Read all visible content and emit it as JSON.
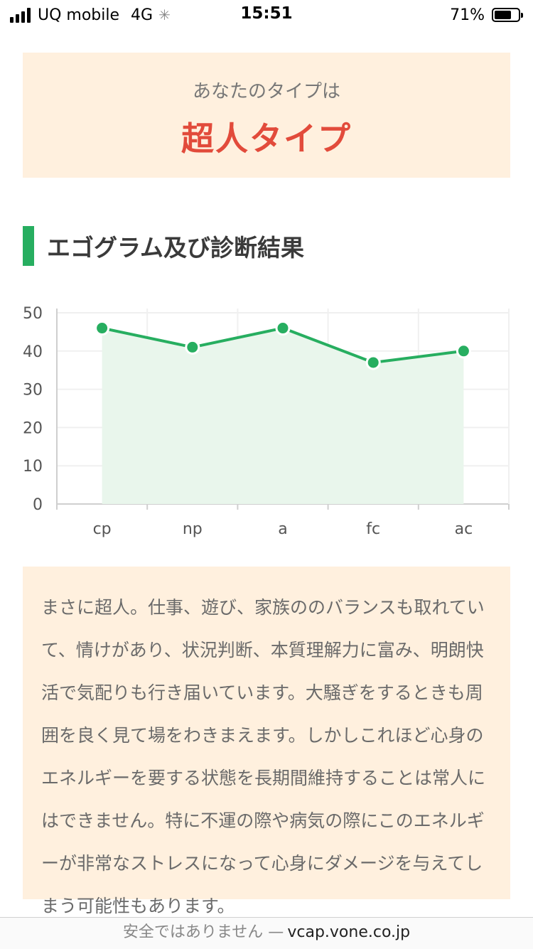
{
  "status_bar": {
    "carrier": "UQ mobile",
    "network": "4G",
    "time": "15:51",
    "battery": "71%",
    "battery_level": 0.71
  },
  "type_card": {
    "lead": "あなたのタイプは",
    "type_name": "超人タイプ"
  },
  "section": {
    "heading": "エゴグラム及び診断結果"
  },
  "colors": {
    "accent": "#27ae60",
    "type_name": "#e24b3b",
    "card_bg": "#fff0de"
  },
  "chart_data": {
    "type": "area",
    "categories": [
      "cp",
      "np",
      "a",
      "fc",
      "ac"
    ],
    "series": [
      {
        "values": [
          46,
          41,
          46,
          37,
          40
        ]
      }
    ],
    "y_ticks": [
      "0",
      "10",
      "20",
      "30",
      "40",
      "50"
    ],
    "ylim": [
      0,
      50
    ],
    "grid": true,
    "line_color": "#27ae60",
    "fill_color": "#e9f6ec"
  },
  "description": {
    "text": "まさに超人。仕事、遊び、家族ののバランスも取れていて、情けがあり、状況判断、本質理解力に富み、明朗快活で気配りも行き届いています。大騒ぎをするときも周囲を良く見て場をわきまえます。しかしこれほど心身のエネルギーを要する状態を長期間維持することは常人にはできません。特に不運の際や病気の際にこのエネルギーが非常なストレスになって心身にダメージを与えてしまう可能性もあります。"
  },
  "url_bar": {
    "insecure_label": "安全ではありません —",
    "domain": "vcap.vone.co.jp"
  }
}
